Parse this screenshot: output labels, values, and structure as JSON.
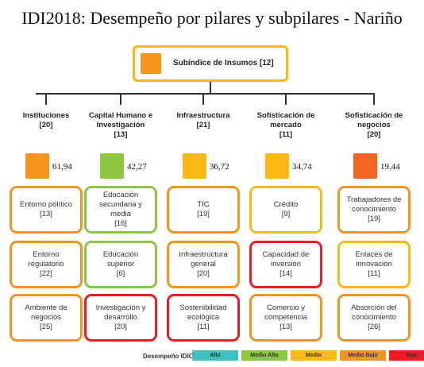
{
  "header": {
    "title": "IDI2018: Desempeño por pilares y subpilares - Nariño"
  },
  "top": {
    "label": "Subíndice de Insumos [12]"
  },
  "pillars": [
    {
      "name": "Instituciones",
      "rank": "[20]",
      "score": "61,94",
      "color": "#f7941d",
      "subpillars": [
        {
          "name": "Entorno político",
          "rank": "[13]",
          "color": "#f7941d"
        },
        {
          "name": "Entorno regulatorio",
          "rank": "[22]",
          "color": "#f7941d"
        },
        {
          "name": "Ambiente de negocios",
          "rank": "[25]",
          "color": "#f7941d"
        }
      ]
    },
    {
      "name": "Capital Humano e Investigación",
      "rank": "[13]",
      "score": "42,27",
      "color": "#8dc63f",
      "subpillars": [
        {
          "name": "Educación secundaria y media",
          "rank": "[16]",
          "color": "#8dc63f"
        },
        {
          "name": "Educación superior",
          "rank": "[6]",
          "color": "#8dc63f"
        },
        {
          "name": "Investigación y desarrollo",
          "rank": "[20]",
          "color": "#ed1c24"
        }
      ]
    },
    {
      "name": "Infraestructura",
      "rank": "[21]",
      "score": "36,72",
      "color": "#fdb913",
      "subpillars": [
        {
          "name": "TIC",
          "rank": "[19]",
          "color": "#f7941d"
        },
        {
          "name": "Infraestructura general",
          "rank": "[20]",
          "color": "#f7941d"
        },
        {
          "name": "Sostenibilidad ecológica",
          "rank": "[11]",
          "color": "#ed1c24"
        }
      ]
    },
    {
      "name": "Sofisticación de mercado",
      "rank": "[11]",
      "score": "34,74",
      "color": "#fdb913",
      "subpillars": [
        {
          "name": "Crédito",
          "rank": "[9]",
          "color": "#fdb913"
        },
        {
          "name": "Capacidad de inversión",
          "rank": "[14]",
          "color": "#ed1c24"
        },
        {
          "name": "Comercio y competencia",
          "rank": "[13]",
          "color": "#f7941d"
        }
      ]
    },
    {
      "name": "Sofisticación de negocios",
      "rank": "[20]",
      "score": "19,44",
      "color": "#f26522",
      "subpillars": [
        {
          "name": "Trabajadores de conocimiento",
          "rank": "[19]",
          "color": "#f7941d"
        },
        {
          "name": "Enlaces de innovación",
          "rank": "[11]",
          "color": "#fdb913"
        },
        {
          "name": "Absorción del conocimiento",
          "rank": "[26]",
          "color": "#f7941d"
        }
      ]
    }
  ],
  "legend": {
    "title": "Desempeño IDIC",
    "items": [
      {
        "label": "Alto",
        "color": "#3fbfbf"
      },
      {
        "label": "Medio Alto",
        "color": "#8dc63f"
      },
      {
        "label": "Medio",
        "color": "#fdb913"
      },
      {
        "label": "Medio Bajo",
        "color": "#f7941d"
      },
      {
        "label": "Bajo",
        "color": "#ed1c24"
      }
    ]
  }
}
